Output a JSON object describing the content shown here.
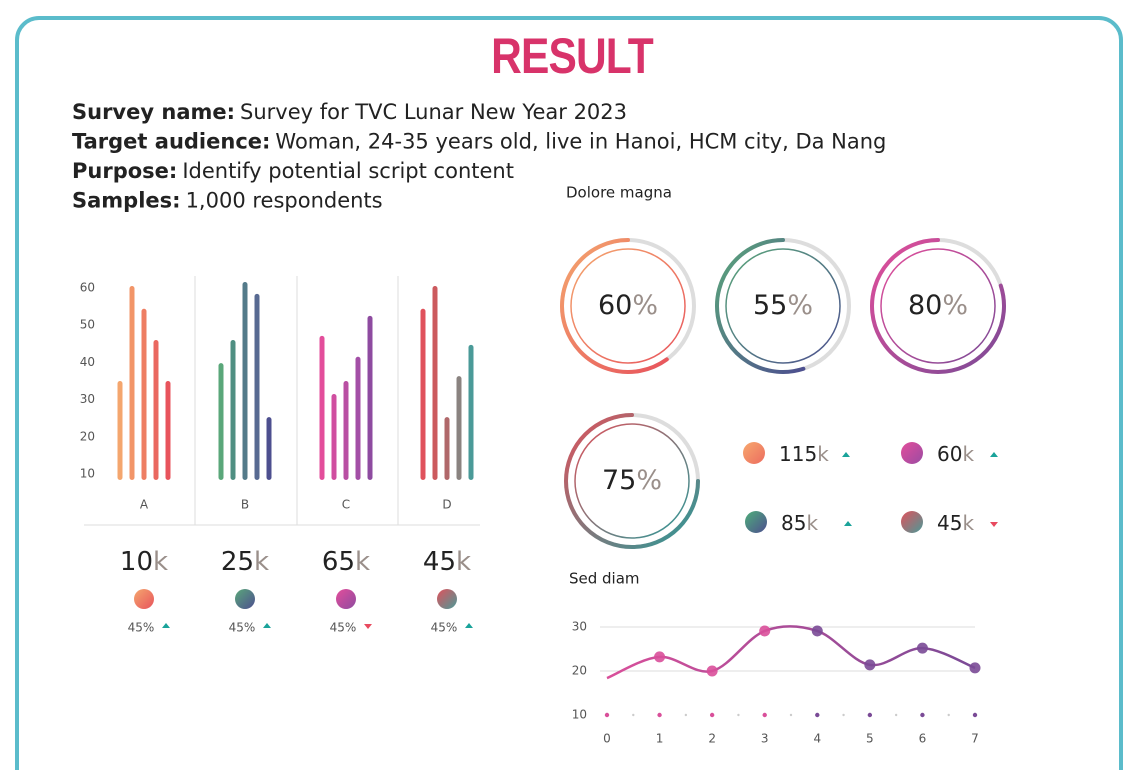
{
  "title": "RESULT",
  "info": [
    {
      "label": "Survey name:",
      "value": "Survey for TVC Lunar New Year 2023"
    },
    {
      "label": "Target audience:",
      "value": "Woman, 24-35 years old, live in Hanoi, HCM city, Da Nang"
    },
    {
      "label": "Purpose:",
      "value": "Identify potential script content"
    },
    {
      "label": "Samples:",
      "value": "1,000 respondents"
    }
  ],
  "chart_data": [
    {
      "type": "grouped-bar",
      "categories": [
        "A",
        "B",
        "C",
        "D"
      ],
      "values": [
        [
          35,
          60.5,
          54.4,
          46,
          35
        ],
        [
          39.8,
          46,
          61.6,
          58.4,
          25.3
        ],
        [
          47.1,
          31.5,
          35,
          41.5,
          52.5
        ],
        [
          54.4,
          60.5,
          25.3,
          36.3,
          44.7
        ]
      ],
      "colors": [
        [
          "#f4a66e",
          "#f29568",
          "#ee7e63",
          "#ea6860",
          "#e8545c"
        ],
        [
          "#5aa77a",
          "#4f8f82",
          "#547b8a",
          "#586a92",
          "#4d4f8f"
        ],
        [
          "#e34e9b",
          "#d04ea0",
          "#b94fa3",
          "#a34fa6",
          "#8e4ba0"
        ],
        [
          "#e0525c",
          "#cc5a5e",
          "#b0686a",
          "#8a8380",
          "#4a9a98"
        ]
      ],
      "ylim": [
        8.4,
        63.2
      ],
      "yticks": [
        10,
        20,
        30,
        40,
        50,
        60
      ],
      "totals": [
        10,
        25,
        65,
        45
      ],
      "total_unit": "k",
      "changes": [
        45,
        45,
        45,
        45
      ],
      "change_labels": [
        "45%",
        "45%",
        "45%",
        "45%"
      ],
      "trends": [
        "up",
        "up",
        "down",
        "up"
      ]
    },
    {
      "type": "ring",
      "title": "Dolore magna",
      "values": [
        60,
        55,
        80,
        75
      ],
      "unit": "%",
      "colors": [
        [
          "#f4a66e",
          "#e8545c"
        ],
        [
          "#5aa77a",
          "#4d4f8f"
        ],
        [
          "#e34e9b",
          "#7a4a96"
        ],
        [
          "#e0525c",
          "#2a9a98"
        ]
      ]
    },
    {
      "type": "stat",
      "values": [
        115,
        60,
        85,
        45
      ],
      "unit": "k",
      "trends": [
        "up",
        "up",
        "up",
        "down"
      ],
      "colors": [
        [
          "#f7a86e",
          "#ec6c5f"
        ],
        [
          "#e34e9b",
          "#9a4ba3"
        ],
        [
          "#4fae7a",
          "#4d4f8f"
        ],
        [
          "#e0525c",
          "#4a9a98"
        ]
      ]
    },
    {
      "type": "line",
      "title": "Sed diam",
      "x": [
        0,
        1,
        2,
        3,
        4,
        5,
        6,
        7
      ],
      "values": [
        18.4,
        23.2,
        20,
        29.1,
        29.1,
        21.4,
        25.2,
        20.7
      ],
      "xlim": [
        0,
        7
      ],
      "ylim": [
        10,
        30
      ],
      "xticks": [
        0,
        1,
        2,
        3,
        4,
        5,
        6,
        7
      ],
      "yticks": [
        10,
        20,
        30
      ],
      "grid": true,
      "color": [
        "#d94f9a",
        "#7a4a96"
      ]
    }
  ]
}
